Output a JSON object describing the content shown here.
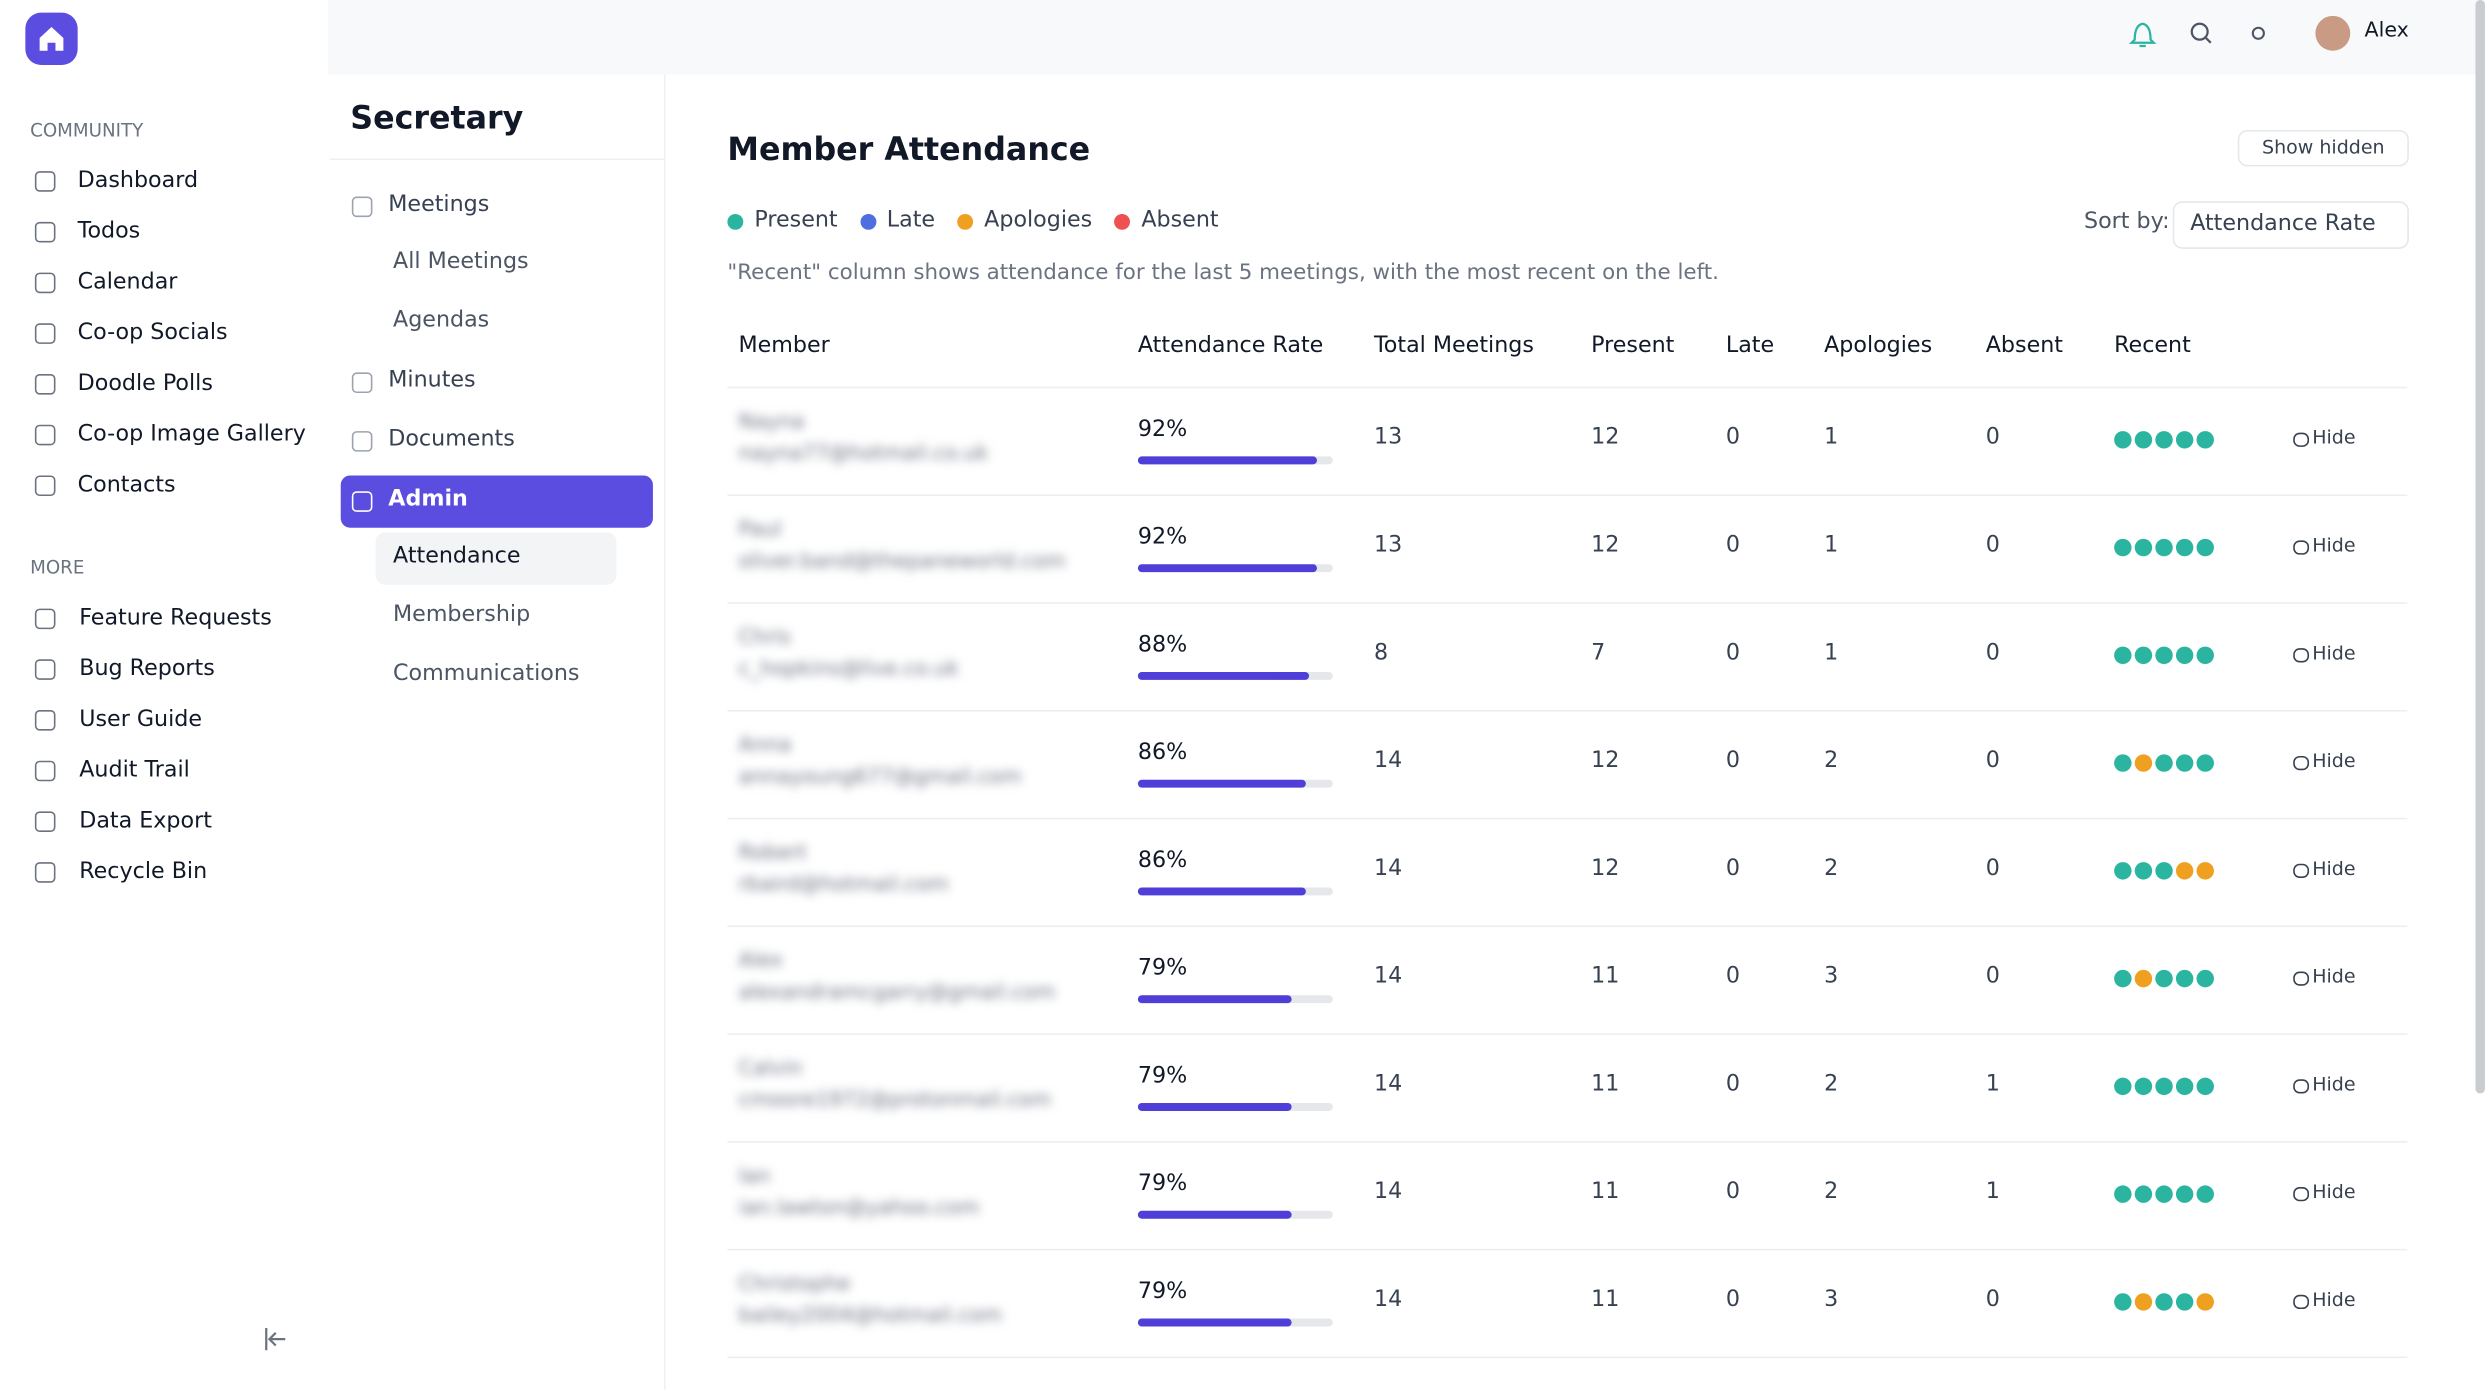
{
  "app": {
    "user": "Alex"
  },
  "sidebar": {
    "community_label": "COMMUNITY",
    "community": [
      "Dashboard",
      "Todos",
      "Calendar",
      "Co-op Socials",
      "Doodle Polls",
      "Co-op Image Gallery",
      "Contacts"
    ],
    "more_label": "MORE",
    "more": [
      "Feature Requests",
      "Bug Reports",
      "User Guide",
      "Audit Trail",
      "Data Export",
      "Recycle Bin"
    ]
  },
  "section": {
    "title": "Secretary",
    "menu": [
      {
        "label": "Meetings",
        "children": [
          "All Meetings",
          "Agendas"
        ]
      },
      {
        "label": "Minutes"
      },
      {
        "label": "Documents"
      },
      {
        "label": "Admin",
        "children": [
          "Attendance",
          "Membership",
          "Communications"
        ]
      }
    ]
  },
  "page": {
    "title": "Member Attendance",
    "show_hidden": "Show hidden",
    "legend": [
      {
        "name": "Present",
        "color": "#2bb5a0"
      },
      {
        "name": "Late",
        "color": "#4f6fe0"
      },
      {
        "name": "Apologies",
        "color": "#f0a020"
      },
      {
        "name": "Absent",
        "color": "#ef5050"
      }
    ],
    "sort_label": "Sort by:",
    "sort_value": "Attendance Rate",
    "note": "\"Recent\" column shows attendance for the last 5 meetings, with the most recent on the left.",
    "columns": [
      "Member",
      "Attendance Rate",
      "Total Meetings",
      "Present",
      "Late",
      "Apologies",
      "Absent",
      "Recent"
    ],
    "hide_label": "Hide",
    "rows": [
      {
        "name": "Nayna",
        "email": "nayna77@hotmail.co.uk",
        "rate": 92,
        "rate_label": "92%",
        "total": 13,
        "present": 12,
        "late": 0,
        "apologies": 1,
        "absent": 0,
        "recent": [
          "Present",
          "Present",
          "Present",
          "Present",
          "Present"
        ]
      },
      {
        "name": "Paul",
        "email": "oliver.band@thepaneworld.com",
        "rate": 92,
        "rate_label": "92%",
        "total": 13,
        "present": 12,
        "late": 0,
        "apologies": 1,
        "absent": 0,
        "recent": [
          "Present",
          "Present",
          "Present",
          "Present",
          "Present"
        ]
      },
      {
        "name": "Chris",
        "email": "c_hopkins@live.co.uk",
        "rate": 88,
        "rate_label": "88%",
        "total": 8,
        "present": 7,
        "late": 0,
        "apologies": 1,
        "absent": 0,
        "recent": [
          "Present",
          "Present",
          "Present",
          "Present",
          "Present"
        ]
      },
      {
        "name": "Anna",
        "email": "annayoung677@gmail.com",
        "rate": 86,
        "rate_label": "86%",
        "total": 14,
        "present": 12,
        "late": 0,
        "apologies": 2,
        "absent": 0,
        "recent": [
          "Present",
          "Apologies",
          "Present",
          "Present",
          "Present"
        ]
      },
      {
        "name": "Robert",
        "email": "rbaird@hotmail.com",
        "rate": 86,
        "rate_label": "86%",
        "total": 14,
        "present": 12,
        "late": 0,
        "apologies": 2,
        "absent": 0,
        "recent": [
          "Present",
          "Present",
          "Present",
          "Apologies",
          "Apologies"
        ]
      },
      {
        "name": "Alex",
        "email": "alexandramcgarry@gmail.com",
        "rate": 79,
        "rate_label": "79%",
        "total": 14,
        "present": 11,
        "late": 0,
        "apologies": 3,
        "absent": 0,
        "recent": [
          "Present",
          "Apologies",
          "Present",
          "Present",
          "Present"
        ]
      },
      {
        "name": "Calvin",
        "email": "cmoore1972@protonmail.com",
        "rate": 79,
        "rate_label": "79%",
        "total": 14,
        "present": 11,
        "late": 0,
        "apologies": 2,
        "absent": 1,
        "recent": [
          "Present",
          "Present",
          "Present",
          "Present",
          "Present"
        ]
      },
      {
        "name": "Ian",
        "email": "ian.lawton@yahoo.com",
        "rate": 79,
        "rate_label": "79%",
        "total": 14,
        "present": 11,
        "late": 0,
        "apologies": 2,
        "absent": 1,
        "recent": [
          "Present",
          "Present",
          "Present",
          "Present",
          "Present"
        ]
      },
      {
        "name": "Christophe",
        "email": "bailey2004@hotmail.com",
        "rate": 79,
        "rate_label": "79%",
        "total": 14,
        "present": 11,
        "late": 0,
        "apologies": 3,
        "absent": 0,
        "recent": [
          "Present",
          "Apologies",
          "Present",
          "Present",
          "Apologies"
        ]
      }
    ]
  }
}
